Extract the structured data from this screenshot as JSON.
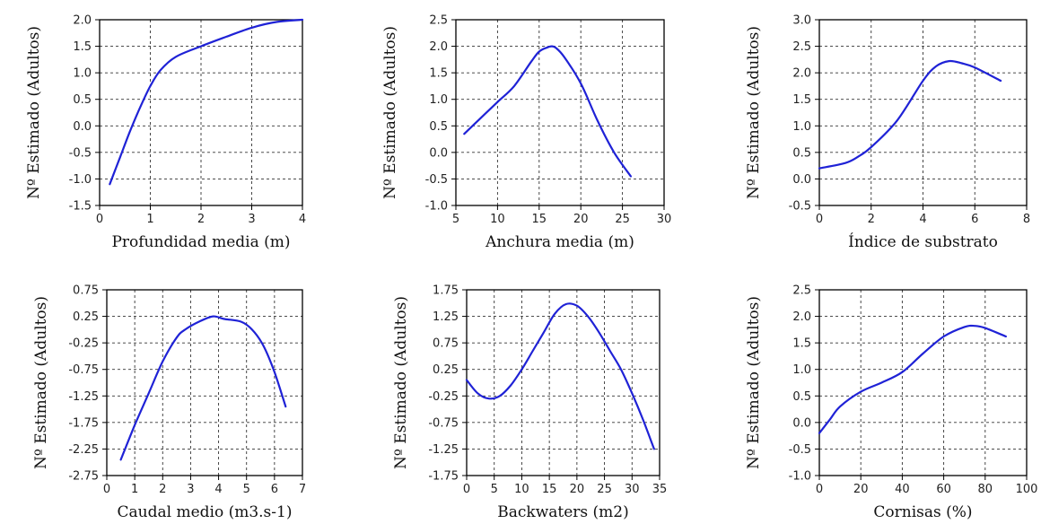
{
  "colors": {
    "line": "#1f22d6",
    "grid": "#333333",
    "axis": "#000000"
  },
  "chart_data": [
    {
      "type": "line",
      "xlabel": "Profundidad media (m)",
      "ylabel": "Nº Estimado (Adultos)",
      "xlim": [
        0,
        4
      ],
      "ylim": [
        -1.5,
        2.0
      ],
      "xticks": [
        "0",
        "1",
        "2",
        "3",
        "4"
      ],
      "yticks": [
        "2.0",
        "1.5",
        "1.0",
        "0.5",
        "0.0",
        "-0.5",
        "-1.0",
        "-1.5"
      ],
      "grid": true,
      "series": [
        {
          "x": [
            0.2,
            0.4,
            0.6,
            0.8,
            1.0,
            1.2,
            1.5,
            2.0,
            2.5,
            3.0,
            3.5,
            4.0
          ],
          "y": [
            -1.1,
            -0.6,
            -0.1,
            0.35,
            0.75,
            1.05,
            1.3,
            1.5,
            1.68,
            1.85,
            1.96,
            2.0
          ]
        }
      ]
    },
    {
      "type": "line",
      "xlabel": "Anchura media (m)",
      "ylabel": "Nº Estimado (Adultos)",
      "xlim": [
        5,
        30
      ],
      "ylim": [
        -1.0,
        2.5
      ],
      "xticks": [
        "5",
        "10",
        "15",
        "20",
        "25",
        "30"
      ],
      "yticks": [
        "2.5",
        "2.0",
        "1.5",
        "1.0",
        "0.5",
        "0.0",
        "-0.5",
        "-1.0"
      ],
      "grid": true,
      "series": [
        {
          "x": [
            6,
            8,
            10,
            12,
            14,
            15,
            16,
            16.5,
            17,
            18,
            20,
            22,
            24,
            26
          ],
          "y": [
            0.35,
            0.65,
            0.95,
            1.25,
            1.7,
            1.9,
            1.98,
            2.0,
            1.97,
            1.8,
            1.3,
            0.6,
            0.0,
            -0.45
          ]
        }
      ]
    },
    {
      "type": "line",
      "xlabel": "Índice de substrato",
      "ylabel": "Nº Estimado (Adultos)",
      "xlim": [
        0,
        8
      ],
      "ylim": [
        -0.5,
        3.0
      ],
      "xticks": [
        "0",
        "2",
        "4",
        "6",
        "8"
      ],
      "yticks": [
        "3.0",
        "2.5",
        "2.0",
        "1.5",
        "1.0",
        "0.5",
        "0.0",
        "-0.5"
      ],
      "grid": true,
      "series": [
        {
          "x": [
            0,
            1,
            1.5,
            2,
            3,
            4,
            4.5,
            5,
            5.5,
            6,
            7
          ],
          "y": [
            0.2,
            0.3,
            0.42,
            0.6,
            1.1,
            1.85,
            2.12,
            2.22,
            2.18,
            2.1,
            1.85
          ]
        }
      ]
    },
    {
      "type": "line",
      "xlabel": "Caudal medio (m3.s-1)",
      "ylabel": "Nº Estimado (Adultos)",
      "xlim": [
        0,
        7
      ],
      "ylim": [
        -2.75,
        0.75
      ],
      "xticks": [
        "0",
        "1",
        "2",
        "3",
        "4",
        "5",
        "6",
        "7"
      ],
      "yticks": [
        "0.75",
        "0.25",
        "-0.25",
        "-0.75",
        "-1.25",
        "-1.75",
        "-2.25",
        "-2.75"
      ],
      "grid": true,
      "series": [
        {
          "x": [
            0.5,
            1.0,
            1.5,
            2.0,
            2.5,
            2.8,
            3.3,
            3.8,
            4.2,
            4.8,
            5.2,
            5.6,
            6.0,
            6.4
          ],
          "y": [
            -2.45,
            -1.8,
            -1.2,
            -0.6,
            -0.15,
            0.0,
            0.15,
            0.25,
            0.2,
            0.15,
            0.0,
            -0.3,
            -0.8,
            -1.45
          ]
        }
      ]
    },
    {
      "type": "line",
      "xlabel": "Backwaters (m2)",
      "ylabel": "Nº Estimado (Adultos)",
      "xlim": [
        0,
        35
      ],
      "ylim": [
        -1.75,
        1.75
      ],
      "xticks": [
        "0",
        "5",
        "10",
        "15",
        "20",
        "25",
        "30",
        "35"
      ],
      "yticks": [
        "1.75",
        "1.25",
        "0.75",
        "0.25",
        "-0.25",
        "-0.75",
        "-1.25",
        "-1.75"
      ],
      "grid": true,
      "series": [
        {
          "x": [
            0,
            2,
            4,
            6,
            8,
            10,
            12,
            14,
            16,
            18,
            20,
            22,
            24,
            26,
            28,
            30,
            32,
            34
          ],
          "y": [
            0.05,
            -0.2,
            -0.3,
            -0.25,
            -0.05,
            0.25,
            0.6,
            0.95,
            1.3,
            1.48,
            1.45,
            1.25,
            0.95,
            0.6,
            0.25,
            -0.2,
            -0.7,
            -1.25
          ]
        }
      ]
    },
    {
      "type": "line",
      "xlabel": "Cornisas (%)",
      "ylabel": "Nº Estimado (Adultos)",
      "xlim": [
        0,
        100
      ],
      "ylim": [
        -1.0,
        2.5
      ],
      "xticks": [
        "0",
        "20",
        "40",
        "60",
        "80",
        "100"
      ],
      "yticks": [
        "2.5",
        "2.0",
        "1.5",
        "1.0",
        "0.5",
        "0.0",
        "-0.5",
        "-1.0"
      ],
      "grid": true,
      "series": [
        {
          "x": [
            0,
            5,
            10,
            20,
            30,
            40,
            50,
            60,
            70,
            75,
            80,
            90
          ],
          "y": [
            -0.2,
            0.05,
            0.3,
            0.58,
            0.75,
            0.95,
            1.3,
            1.62,
            1.8,
            1.82,
            1.78,
            1.62
          ]
        }
      ]
    }
  ]
}
